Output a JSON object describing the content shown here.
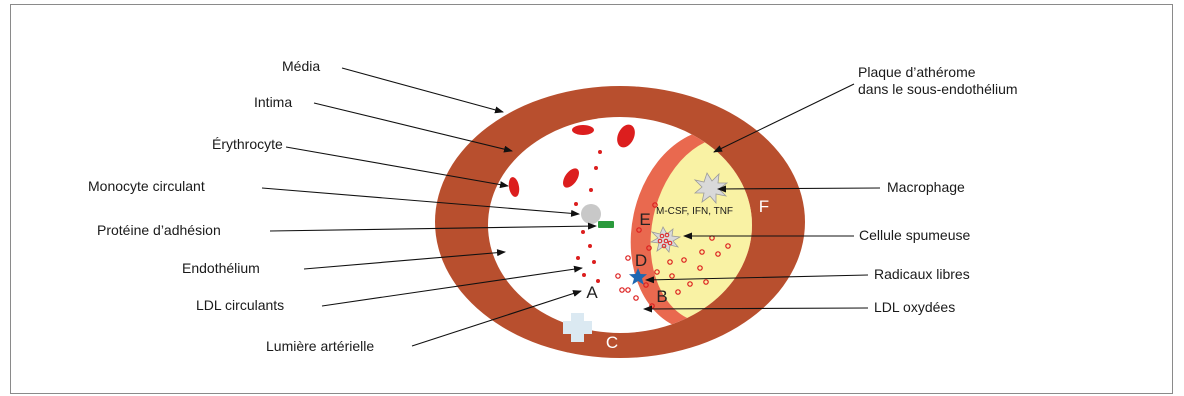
{
  "labels": {
    "media": "Média",
    "intima": "Intima",
    "erythrocyte": "Érythrocyte",
    "monocyte": "Monocyte circulant",
    "adhesion": "Protéine d’adhésion",
    "endothelium": "Endothélium",
    "ldl_circulants": "LDL circulants",
    "lumiere": "Lumière artérielle",
    "plaque_line1": "Plaque d’athérome",
    "plaque_line2": "dans le sous-endothélium",
    "macrophage": "Macrophage",
    "cellule": "Cellule spumeuse",
    "radicaux": "Radicaux libres",
    "ldl_oxydees": "LDL oxydées",
    "cytokines": "M-CSF, IFN, TNF"
  },
  "letters": {
    "a": "A",
    "b": "B",
    "c": "C",
    "d": "D",
    "e": "E",
    "f": "F"
  },
  "colors": {
    "media": "#b84f2e",
    "endothelium_ring": "#e9694f",
    "plaque": "#f9f2a4",
    "erythrocyte": "#dc1e1e",
    "adhesion_protein": "#2a9a3c",
    "free_radical": "#1f67b1",
    "cross": "#dbe9f2",
    "monocyte": "#c8c8c8"
  }
}
